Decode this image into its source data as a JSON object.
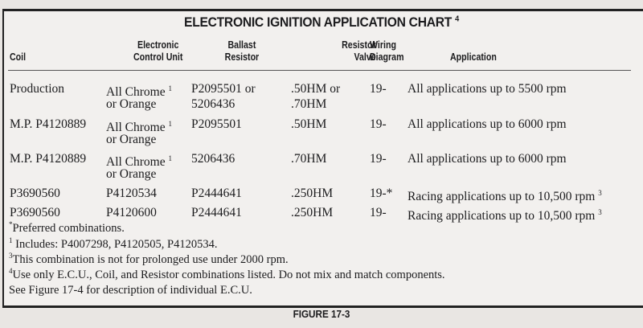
{
  "title": "ELECTRONIC IGNITION APPLICATION CHART",
  "title_footnote": "4",
  "columns": [
    {
      "line1": "",
      "line2": "Coil"
    },
    {
      "line1": "Electronic",
      "line2": "Control Unit"
    },
    {
      "line1": "Ballast",
      "line2": "Resistor"
    },
    {
      "line1": "Resistor",
      "line2": "Valve"
    },
    {
      "line1": "Wiring",
      "line2": "Diagram"
    },
    {
      "line1": "",
      "line2": "Application"
    }
  ],
  "rows": [
    {
      "coil": "Production",
      "ecu": "All Chrome",
      "ecu_note": "1",
      "ecu2": "or Orange",
      "ballast": "P2095501 or",
      "ballast2": "5206436",
      "valve": ".50HM or",
      "valve2": ".70HM",
      "wiring": "19-",
      "application": "All applications up to 5500 rpm",
      "app_note": ""
    },
    {
      "coil": "M.P. P4120889",
      "ecu": "All Chrome",
      "ecu_note": "1",
      "ecu2": "or Orange",
      "ballast": "P2095501",
      "ballast2": "",
      "valve": ".50HM",
      "valve2": "",
      "wiring": "19-",
      "application": "All applications up to 6000 rpm",
      "app_note": ""
    },
    {
      "coil": "M.P. P4120889",
      "ecu": "All Chrome",
      "ecu_note": "1",
      "ecu2": "or Orange",
      "ballast": "5206436",
      "ballast2": "",
      "valve": ".70HM",
      "valve2": "",
      "wiring": "19-",
      "application": "All applications up to 6000 rpm",
      "app_note": ""
    },
    {
      "coil": "P3690560",
      "ecu": "P4120534",
      "ecu_note": "",
      "ecu2": "",
      "ballast": "P2444641",
      "ballast2": "",
      "valve": ".250HM",
      "valve2": "",
      "wiring": "19-*",
      "application": "Racing applications up to 10,500 rpm",
      "app_note": "3"
    },
    {
      "coil": "P3690560",
      "ecu": "P4120600",
      "ecu_note": "",
      "ecu2": "",
      "ballast": "P2444641",
      "ballast2": "",
      "valve": ".250HM",
      "valve2": "",
      "wiring": "19-",
      "application": "Racing applications up to 10,500 rpm",
      "app_note": "3"
    }
  ],
  "footnotes": [
    {
      "mark": "*",
      "text": "Preferred combinations."
    },
    {
      "mark": "1",
      "text": " Includes: P4007298, P4120505, P4120534."
    },
    {
      "mark": "3",
      "text": "This combination is not for prolonged use under 2000 rpm."
    },
    {
      "mark": "4",
      "text": "Use only E.C.U., Coil, and Resistor combinations listed. Do not mix and match components."
    },
    {
      "mark": "",
      "text": "See Figure 17-4 for description of individual E.C.U."
    }
  ],
  "caption": "FIGURE 17-3"
}
